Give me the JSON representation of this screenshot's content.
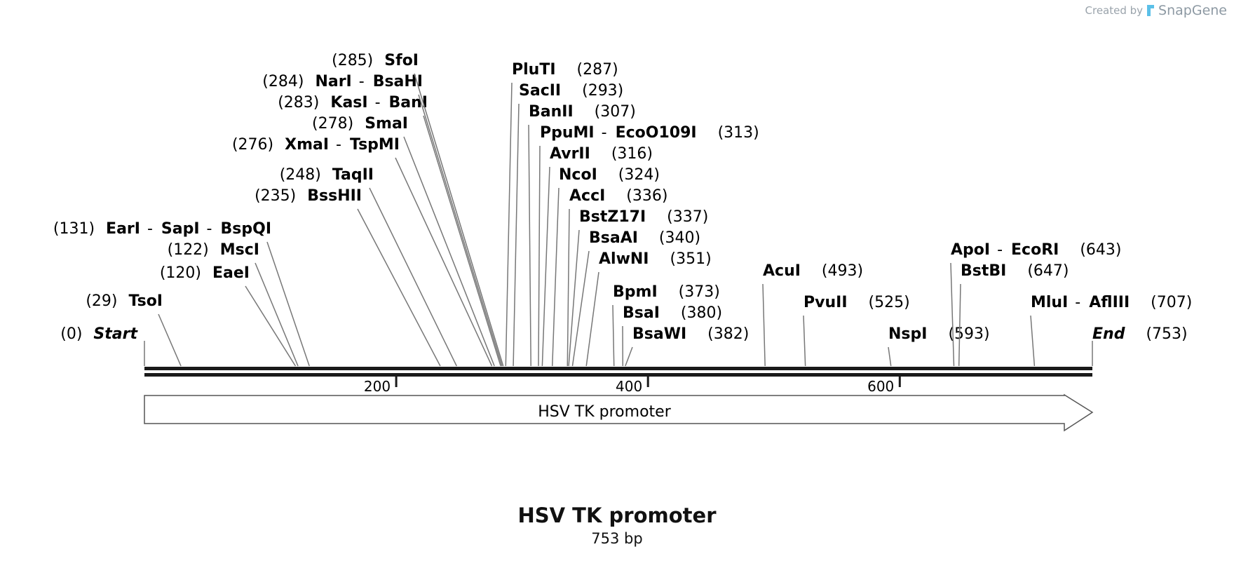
{
  "credit": {
    "prefix": "Created by",
    "brand": "SnapGene"
  },
  "sequence": {
    "name": "HSV TK promoter",
    "length_label": "753 bp",
    "length_bp": 753
  },
  "axis": {
    "ticks": [
      {
        "value": 200,
        "label": "200"
      },
      {
        "value": 400,
        "label": "400"
      },
      {
        "value": 600,
        "label": "600"
      }
    ]
  },
  "feature": {
    "label": "HSV TK promoter",
    "start": 0,
    "end": 753,
    "direction": "forward"
  },
  "ends": [
    {
      "label": "Start",
      "pos_label": "(0)",
      "bp": 0,
      "side": "left"
    },
    {
      "label": "End",
      "pos_label": "(753)",
      "bp": 753,
      "side": "right"
    }
  ],
  "sites": [
    {
      "names": [
        "TsoI"
      ],
      "pos_label": "(29)",
      "bp": 29,
      "side": "left"
    },
    {
      "names": [
        "EaeI"
      ],
      "pos_label": "(120)",
      "bp": 120,
      "side": "left"
    },
    {
      "names": [
        "MscI"
      ],
      "pos_label": "(122)",
      "bp": 122,
      "side": "left"
    },
    {
      "names": [
        "EarI",
        "SapI",
        "BspQI"
      ],
      "pos_label": "(131)",
      "bp": 131,
      "side": "left"
    },
    {
      "names": [
        "BssHII"
      ],
      "pos_label": "(235)",
      "bp": 235,
      "side": "left"
    },
    {
      "names": [
        "TaqII"
      ],
      "pos_label": "(248)",
      "bp": 248,
      "side": "left"
    },
    {
      "names": [
        "XmaI",
        "TspMI"
      ],
      "pos_label": "(276)",
      "bp": 276,
      "side": "left"
    },
    {
      "names": [
        "SmaI"
      ],
      "pos_label": "(278)",
      "bp": 278,
      "side": "left"
    },
    {
      "names": [
        "KasI",
        "BanI"
      ],
      "pos_label": "(283)",
      "bp": 283,
      "side": "left"
    },
    {
      "names": [
        "NarI",
        "BsaHI"
      ],
      "pos_label": "(284)",
      "bp": 284,
      "side": "left"
    },
    {
      "names": [
        "SfoI"
      ],
      "pos_label": "(285)",
      "bp": 285,
      "side": "left"
    },
    {
      "names": [
        "PluTI"
      ],
      "pos_label": "(287)",
      "bp": 287,
      "side": "right"
    },
    {
      "names": [
        "SacII"
      ],
      "pos_label": "(293)",
      "bp": 293,
      "side": "right"
    },
    {
      "names": [
        "BanII"
      ],
      "pos_label": "(307)",
      "bp": 307,
      "side": "right"
    },
    {
      "names": [
        "PpuMI",
        "EcoO109I"
      ],
      "pos_label": "(313)",
      "bp": 313,
      "side": "right"
    },
    {
      "names": [
        "AvrII"
      ],
      "pos_label": "(316)",
      "bp": 316,
      "side": "right"
    },
    {
      "names": [
        "NcoI"
      ],
      "pos_label": "(324)",
      "bp": 324,
      "side": "right"
    },
    {
      "names": [
        "AccI"
      ],
      "pos_label": "(336)",
      "bp": 336,
      "side": "right"
    },
    {
      "names": [
        "BstZ17I"
      ],
      "pos_label": "(337)",
      "bp": 337,
      "side": "right"
    },
    {
      "names": [
        "BsaAI"
      ],
      "pos_label": "(340)",
      "bp": 340,
      "side": "right"
    },
    {
      "names": [
        "AlwNI"
      ],
      "pos_label": "(351)",
      "bp": 351,
      "side": "right"
    },
    {
      "names": [
        "BpmI"
      ],
      "pos_label": "(373)",
      "bp": 373,
      "side": "right"
    },
    {
      "names": [
        "BsaI"
      ],
      "pos_label": "(380)",
      "bp": 380,
      "side": "right"
    },
    {
      "names": [
        "BsaWI"
      ],
      "pos_label": "(382)",
      "bp": 382,
      "side": "right"
    },
    {
      "names": [
        "AcuI"
      ],
      "pos_label": "(493)",
      "bp": 493,
      "side": "right"
    },
    {
      "names": [
        "PvuII"
      ],
      "pos_label": "(525)",
      "bp": 525,
      "side": "right"
    },
    {
      "names": [
        "NspI"
      ],
      "pos_label": "(593)",
      "bp": 593,
      "side": "right"
    },
    {
      "names": [
        "ApoI",
        "EcoRI"
      ],
      "pos_label": "(643)",
      "bp": 643,
      "side": "right"
    },
    {
      "names": [
        "BstBI"
      ],
      "pos_label": "(647)",
      "bp": 647,
      "side": "right"
    },
    {
      "names": [
        "MluI",
        "AflIII"
      ],
      "pos_label": "(707)",
      "bp": 707,
      "side": "right"
    }
  ]
}
